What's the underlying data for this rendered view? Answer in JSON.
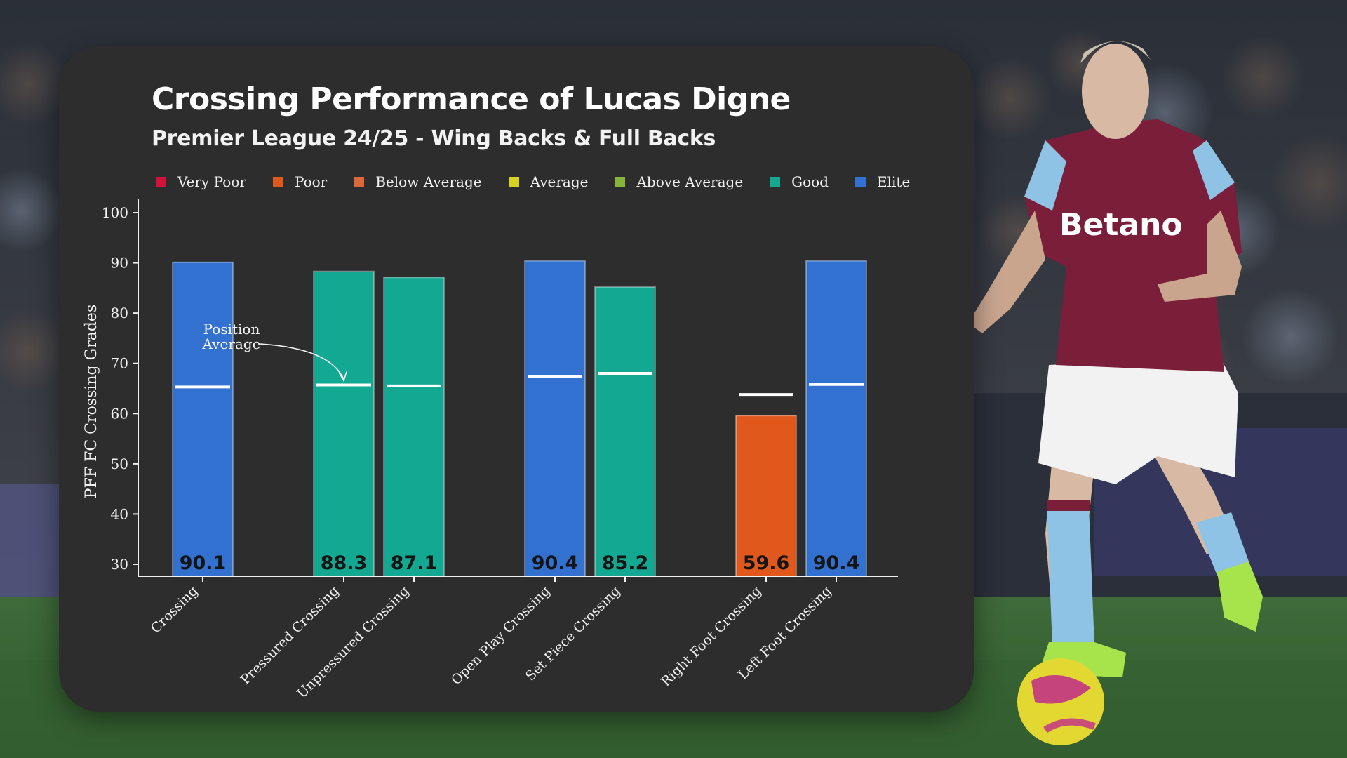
{
  "colors": {
    "very_poor": "#d2143c",
    "poor": "#e0581c",
    "below_average": "#d9683a",
    "average": "#d3d320",
    "above_average": "#86b53a",
    "good": "#13a892",
    "elite": "#3271d0",
    "avg_marker": "#ffffff",
    "card_bg": "#2d2d2e"
  },
  "chart_data": {
    "type": "bar",
    "title": "Crossing Performance of Lucas Digne",
    "subtitle": "Premier League 24/25 - Wing Backs & Full Backs",
    "ylabel": "PFF FC Crossing Grades",
    "xlabel": "",
    "ylim": [
      30,
      100
    ],
    "yticks": [
      100,
      90,
      80,
      70,
      60,
      50,
      40,
      30
    ],
    "grid": false,
    "legend_position": "top",
    "legend": [
      {
        "label": "Very Poor",
        "color": "#d2143c"
      },
      {
        "label": "Poor",
        "color": "#e0581c"
      },
      {
        "label": "Below Average",
        "color": "#d9683a"
      },
      {
        "label": "Average",
        "color": "#d3d320"
      },
      {
        "label": "Above Average",
        "color": "#86b53a"
      },
      {
        "label": "Good",
        "color": "#13a892"
      },
      {
        "label": "Elite",
        "color": "#3271d0"
      }
    ],
    "categories": [
      "Crossing",
      "Pressured Crossing",
      "Unpressured Crossing",
      "Open Play Crossing",
      "Set Piece Crossing",
      "Right Foot Crossing",
      "Left Foot Crossing"
    ],
    "groups": [
      [
        0
      ],
      [
        1,
        2
      ],
      [
        3,
        4
      ],
      [
        5,
        6
      ]
    ],
    "values": [
      90.1,
      88.3,
      87.1,
      90.4,
      85.2,
      59.6,
      90.4
    ],
    "value_labels": [
      "90.1",
      "88.3",
      "87.1",
      "90.4",
      "85.2",
      "59.6",
      "90.4"
    ],
    "tiers": [
      "Elite",
      "Good",
      "Good",
      "Elite",
      "Good",
      "Poor",
      "Elite"
    ],
    "position_average": [
      65.3,
      65.7,
      65.5,
      67.3,
      68.0,
      63.8,
      65.8
    ],
    "annotation": {
      "text": [
        "Position",
        "Average"
      ],
      "target_index": 1
    }
  }
}
